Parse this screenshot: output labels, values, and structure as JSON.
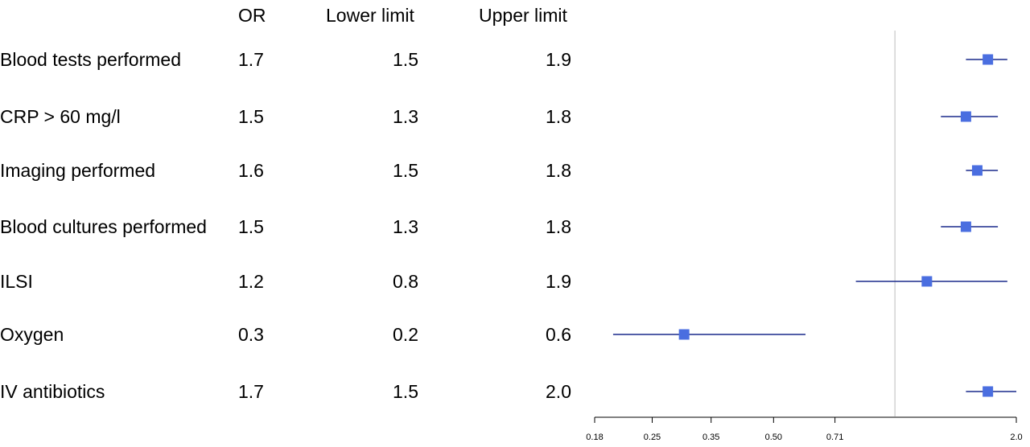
{
  "headers": {
    "or": "OR",
    "lower": "Lower limit",
    "upper": "Upper limit"
  },
  "rows": [
    {
      "label": "Blood tests performed",
      "or": "1.7",
      "lower": "1.5",
      "upper": "1.9"
    },
    {
      "label": "CRP > 60 mg/l",
      "or": "1.5",
      "lower": "1.3",
      "upper": "1.8"
    },
    {
      "label": "Imaging performed",
      "or": "1.6",
      "lower": "1.5",
      "upper": "1.8"
    },
    {
      "label": "Blood cultures performed",
      "or": "1.5",
      "lower": "1.3",
      "upper": "1.8"
    },
    {
      "label": "ILSI",
      "or": "1.2",
      "lower": "0.8",
      "upper": "1.9"
    },
    {
      "label": "Oxygen",
      "or": "0.3",
      "lower": "0.2",
      "upper": "0.6"
    },
    {
      "label": "IV antibiotics",
      "or": "1.7",
      "lower": "1.5",
      "upper": "2.0"
    }
  ],
  "chart_data": {
    "type": "forest",
    "xscale": "log",
    "xlim": [
      0.18,
      2.0
    ],
    "xticks": [
      "0.18",
      "0.25",
      "0.35",
      "0.50",
      "0.71",
      "2.0"
    ],
    "reference_line": 1.0,
    "colors": {
      "marker": "#4a6ee0",
      "ci_line": "#1a2a8c",
      "reference": "#c8c8c8",
      "axis": "#000000"
    },
    "points": [
      {
        "label": "Blood tests performed",
        "or": 1.7,
        "lower": 1.5,
        "upper": 1.9
      },
      {
        "label": "CRP > 60 mg/l",
        "or": 1.5,
        "lower": 1.3,
        "upper": 1.8
      },
      {
        "label": "Imaging performed",
        "or": 1.6,
        "lower": 1.5,
        "upper": 1.8
      },
      {
        "label": "Blood cultures performed",
        "or": 1.5,
        "lower": 1.3,
        "upper": 1.8
      },
      {
        "label": "ILSI",
        "or": 1.2,
        "lower": 0.8,
        "upper": 1.9
      },
      {
        "label": "Oxygen",
        "or": 0.3,
        "lower": 0.2,
        "upper": 0.6
      },
      {
        "label": "IV antibiotics",
        "or": 1.7,
        "lower": 1.5,
        "upper": 2.0
      }
    ]
  }
}
